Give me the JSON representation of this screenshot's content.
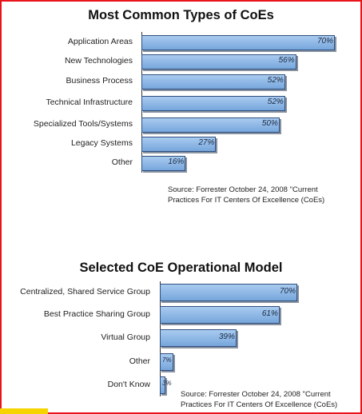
{
  "chart_data": [
    {
      "type": "bar",
      "orientation": "horizontal",
      "title": "Most Common Types of CoEs",
      "categories": [
        "Application Areas",
        "New Technologies",
        "Business Process",
        "Technical Infrastructure",
        "Specialized Tools/Systems",
        "Legacy Systems",
        "Other"
      ],
      "values": [
        70,
        56,
        52,
        52,
        50,
        27,
        16
      ],
      "value_labels": [
        "70%",
        "56%",
        "52%",
        "52%",
        "50%",
        "27%",
        "16%"
      ],
      "xlim": [
        0,
        70
      ],
      "source_lines": [
        "Source: Forrester October 24, 2008 \"Current",
        "Practices For IT Centers Of Excellence (CoEs)"
      ]
    },
    {
      "type": "bar",
      "orientation": "horizontal",
      "title": "Selected CoE Operational Model",
      "categories": [
        "Centralized, Shared Service Group",
        "Best Practice Sharing Group",
        "Virtual Group",
        "Other",
        "Don't Know"
      ],
      "values": [
        70,
        61,
        39,
        7,
        3
      ],
      "value_labels": [
        "70%",
        "61%",
        "39%",
        "7%",
        "3%"
      ],
      "xlim": [
        0,
        70
      ],
      "source_lines": [
        "Source: Forrester October 24, 2008 \"Current",
        "Practices For IT Centers Of Excellence (CoEs)"
      ]
    }
  ],
  "colors": {
    "frame": "#e8141b",
    "bar_fill": "#8fb8e8",
    "bar_border": "#2f4f7e",
    "accent_strip": "#f5d400"
  }
}
